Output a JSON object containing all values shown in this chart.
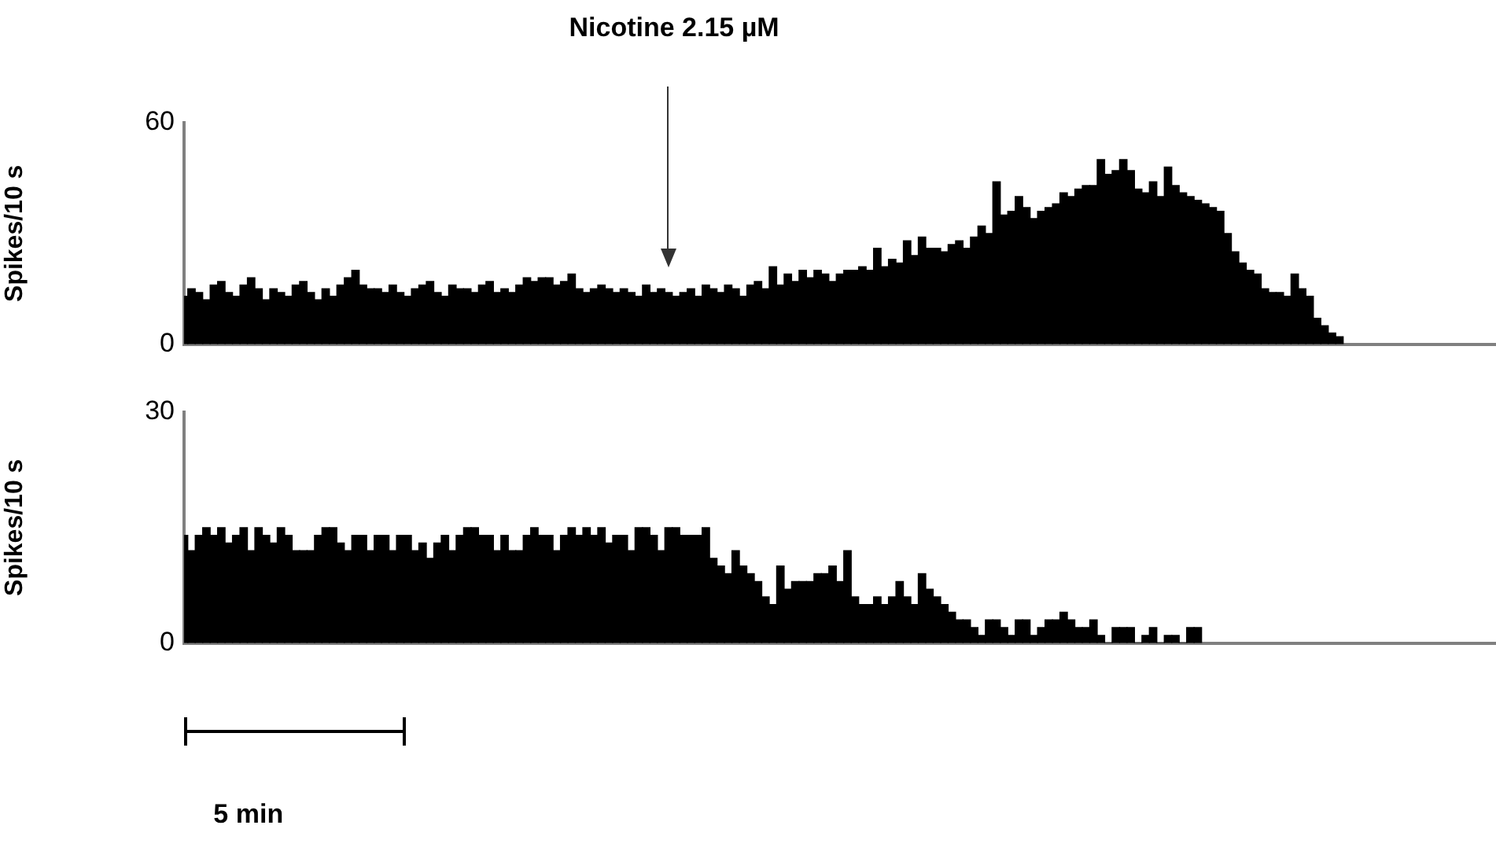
{
  "chart_data": [
    {
      "type": "bar",
      "ylabel": "Spikes/10 s",
      "annotations": [
        "Nicotine  2.15 µM"
      ],
      "color": "#000000",
      "ylim": [
        0,
        60
      ],
      "yticks": [
        0,
        60
      ],
      "tick_labels": "y",
      "grid": false,
      "categories": [
        null,
        null,
        null,
        null,
        null,
        null,
        null,
        null,
        null,
        null,
        null,
        null,
        null,
        null,
        null,
        null,
        null,
        null,
        null,
        null,
        null,
        null,
        null,
        null,
        null,
        null,
        null,
        null,
        null,
        null,
        null,
        null,
        null,
        null,
        null,
        null,
        null,
        null,
        null,
        null,
        null,
        null,
        null,
        null,
        null,
        null,
        null,
        null,
        null,
        null,
        null,
        null,
        null,
        null,
        null,
        null,
        null,
        null,
        null,
        null,
        null,
        null,
        null,
        null,
        null,
        null,
        null,
        null,
        null,
        null,
        null,
        null,
        null,
        null,
        null,
        null,
        null,
        null,
        null,
        null,
        null,
        null,
        null,
        null,
        null,
        null,
        null,
        null,
        null,
        null,
        null,
        null,
        null,
        null,
        null,
        null,
        null,
        null,
        null,
        null,
        null,
        null,
        null,
        null,
        null,
        null,
        null,
        null,
        null,
        null,
        null,
        null,
        null,
        null,
        null,
        null,
        null,
        null,
        null,
        null,
        null,
        null,
        null,
        null,
        null,
        null,
        null,
        null,
        null,
        null,
        null,
        null,
        null,
        null,
        null,
        null,
        null,
        null,
        null,
        null,
        null,
        null,
        null,
        null,
        null,
        null,
        null,
        null,
        null,
        null,
        null,
        null,
        null,
        null,
        null,
        null,
        null,
        null,
        null,
        null,
        null,
        null,
        null,
        null,
        null,
        null,
        null,
        null,
        null,
        null,
        null,
        null,
        null,
        null,
        null,
        null,
        null
      ],
      "values": [
        13,
        15,
        14,
        12,
        16,
        17,
        14,
        13,
        16,
        18,
        15,
        12,
        15,
        14,
        13,
        16,
        17,
        14,
        12,
        15,
        13,
        16,
        18,
        20,
        16,
        15,
        15,
        14,
        16,
        14,
        13,
        15,
        16,
        17,
        14,
        13,
        16,
        15,
        15,
        14,
        16,
        17,
        14,
        15,
        14,
        16,
        18,
        17,
        18,
        18,
        16,
        17,
        19,
        15,
        14,
        15,
        16,
        15,
        14,
        15,
        14,
        13,
        16,
        14,
        15,
        14,
        13,
        14,
        15,
        13,
        16,
        15,
        14,
        16,
        15,
        13,
        16,
        17,
        15,
        21,
        16,
        19,
        17,
        20,
        18,
        20,
        19,
        17,
        19,
        20,
        20,
        21,
        20,
        26,
        21,
        23,
        22,
        28,
        24,
        29,
        26,
        26,
        25,
        27,
        28,
        26,
        29,
        32,
        30,
        44,
        35,
        36,
        40,
        37,
        34,
        36,
        37,
        38,
        41,
        40,
        42,
        43,
        43,
        50,
        46,
        47,
        50,
        47,
        42,
        41,
        44,
        40,
        48,
        43,
        41,
        40,
        39,
        38,
        37,
        36,
        30,
        25,
        22,
        20,
        19,
        15,
        14,
        14,
        13,
        19,
        15,
        13,
        7,
        5,
        3,
        2,
        null,
        null,
        null,
        null,
        null,
        null,
        null,
        null,
        null,
        null,
        null,
        null,
        null,
        null,
        null,
        null,
        null,
        null,
        null,
        null,
        null
      ]
    },
    {
      "type": "bar",
      "ylabel": "Spikes/10 s",
      "annotations": [
        "5 min"
      ],
      "color": "#000000",
      "ylim": [
        0,
        30
      ],
      "yticks": [
        0,
        30
      ],
      "tick_labels": "y",
      "grid": false,
      "categories": [
        null,
        null,
        null,
        null,
        null,
        null,
        null,
        null,
        null,
        null,
        null,
        null,
        null,
        null,
        null,
        null,
        null,
        null,
        null,
        null,
        null,
        null,
        null,
        null,
        null,
        null,
        null,
        null,
        null,
        null,
        null,
        null,
        null,
        null,
        null,
        null,
        null,
        null,
        null,
        null,
        null,
        null,
        null,
        null,
        null,
        null,
        null,
        null,
        null,
        null,
        null,
        null,
        null,
        null,
        null,
        null,
        null,
        null,
        null,
        null,
        null,
        null,
        null,
        null,
        null,
        null,
        null,
        null,
        null,
        null,
        null,
        null,
        null,
        null,
        null,
        null,
        null,
        null,
        null,
        null,
        null,
        null,
        null,
        null,
        null,
        null,
        null,
        null,
        null,
        null,
        null,
        null,
        null,
        null,
        null,
        null,
        null,
        null,
        null,
        null,
        null,
        null,
        null,
        null,
        null,
        null,
        null,
        null,
        null,
        null,
        null,
        null,
        null,
        null,
        null,
        null,
        null,
        null,
        null,
        null,
        null,
        null,
        null,
        null,
        null,
        null,
        null,
        null,
        null,
        null,
        null,
        null,
        null,
        null,
        null,
        null,
        null,
        null,
        null,
        null,
        null,
        null,
        null,
        null,
        null,
        null,
        null,
        null,
        null,
        null,
        null,
        null,
        null,
        null,
        null,
        null,
        null,
        null,
        null,
        null,
        null,
        null,
        null,
        null,
        null,
        null,
        null,
        null,
        null,
        null,
        null,
        null,
        null,
        null,
        null,
        null,
        null
      ],
      "values": [
        14,
        12,
        14,
        15,
        14,
        15,
        13,
        14,
        15,
        12,
        15,
        14,
        13,
        15,
        14,
        12,
        12,
        12,
        14,
        15,
        15,
        13,
        12,
        14,
        14,
        12,
        14,
        14,
        12,
        14,
        14,
        12,
        13,
        11,
        13,
        14,
        12,
        14,
        15,
        15,
        14,
        14,
        12,
        14,
        12,
        12,
        14,
        15,
        14,
        14,
        12,
        14,
        15,
        14,
        15,
        14,
        15,
        13,
        14,
        14,
        12,
        15,
        15,
        14,
        12,
        15,
        15,
        14,
        14,
        14,
        15,
        11,
        10,
        9,
        12,
        10,
        9,
        8,
        6,
        5,
        10,
        7,
        8,
        8,
        8,
        9,
        9,
        10,
        8,
        12,
        6,
        5,
        5,
        6,
        5,
        6,
        8,
        6,
        5,
        9,
        7,
        6,
        5,
        4,
        3,
        3,
        2,
        1,
        3,
        3,
        2,
        1,
        3,
        3,
        1,
        2,
        3,
        3,
        4,
        3,
        2,
        2,
        3,
        1,
        0,
        2,
        2,
        2,
        0,
        1,
        2,
        0,
        1,
        1,
        0,
        2,
        2,
        null,
        null,
        null,
        null,
        null,
        null,
        null,
        null,
        null,
        null,
        null,
        null,
        null,
        null,
        null,
        null,
        null,
        null,
        null,
        null,
        null,
        null,
        null,
        null,
        null,
        null,
        null,
        null,
        null,
        null,
        null,
        null,
        null,
        null,
        null,
        null,
        null,
        null,
        null,
        null
      ]
    }
  ]
}
